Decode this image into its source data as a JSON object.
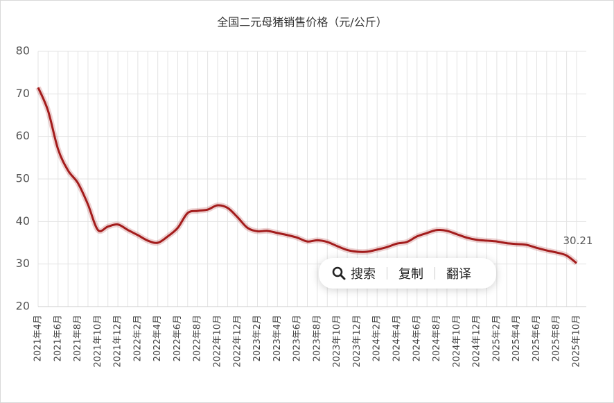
{
  "chart_data": {
    "type": "line",
    "title": "全国二元母猪销售价格（元/公斤）",
    "categories": [
      "2021年4月",
      null,
      "2021年6月",
      null,
      "2021年8月",
      null,
      "2021年10月",
      null,
      "2021年12月",
      null,
      "2022年2月",
      null,
      "2022年4月",
      null,
      "2022年6月",
      null,
      "2022年8月",
      null,
      "2022年10月",
      null,
      "2022年12月",
      null,
      "2023年2月",
      null,
      "2023年4月",
      null,
      "2023年6月",
      null,
      "2023年8月",
      null,
      "2023年10月",
      null,
      "2023年12月",
      null,
      "2024年2月",
      null,
      "2024年4月",
      null,
      "2024年6月",
      null,
      "2024年8月",
      null,
      "2024年10月",
      null,
      "2024年12月",
      null,
      "2025年2月",
      null,
      "2025年4月",
      null,
      "2025年6月",
      null,
      "2025年8月",
      null,
      "2025年10月"
    ],
    "series": [
      {
        "color": "#a31c1c",
        "values": [
          71.5,
          66,
          57,
          52,
          49,
          44,
          38,
          38.8,
          39.3,
          38,
          36.8,
          35.5,
          35,
          36.5,
          38.5,
          42,
          42.5,
          42.8,
          43.8,
          43.2,
          41,
          38.5,
          37.7,
          37.8,
          37.3,
          36.8,
          36.2,
          35.3,
          35.6,
          35.2,
          34.2,
          33.3,
          32.9,
          32.9,
          33.4,
          34,
          34.8,
          35.2,
          36.5,
          37.3,
          38,
          37.8,
          37,
          36.2,
          35.7,
          35.5,
          35.3,
          34.9,
          34.7,
          34.5,
          33.8,
          33.2,
          32.7,
          32,
          30.21
        ]
      }
    ],
    "ylim": [
      20,
      80
    ],
    "yticks": [
      20,
      30,
      40,
      50,
      60,
      70,
      80
    ],
    "grid": true,
    "last_value_label": true
  },
  "context_menu": {
    "items": [
      "搜索",
      "复制",
      "翻译"
    ]
  }
}
